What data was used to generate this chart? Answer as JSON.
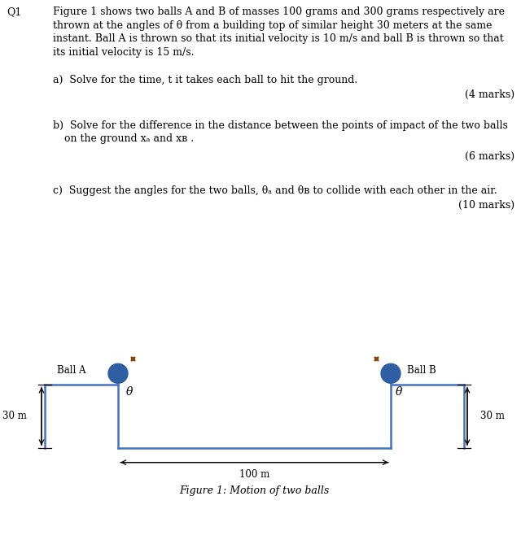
{
  "bg_color": "#ffffff",
  "text_color": "#000000",
  "line_color": "#4472c4",
  "ball_color": "#2e5fa3",
  "arrow_color": "#000000",
  "fig_width": 6.4,
  "fig_height": 6.69,
  "q1_label": "Q1",
  "q1_text": "Figure 1 shows two balls A and B of masses 100 grams and 300 grams respectively are\nthrown at the angles of θ from a building top of similar height 30 meters at the same\ninstant. Ball A is thrown so that its initial velocity is 10 m/s and ball B is thrown so that\nits initial velocity is 15 m/s.",
  "part_a_text": "a)  Solve for the time, t it takes each ball to hit the ground.",
  "part_a_marks": "(4 marks)",
  "part_b_line1": "b)  Solve for the difference in the distance between the points of impact of the two balls",
  "part_b_line2": "     on the ground xₐ and xʙ .",
  "part_b_marks": "(6 marks)",
  "part_c_text": "c)  Suggest the angles for the two balls, θₐ and θʙ to collide with each other in the air.",
  "part_c_marks": "(10 marks)",
  "ball_A_label": "Ball A",
  "ball_B_label": "Ball B",
  "theta_label": "θ",
  "height_label": "30 m",
  "distance_label": "100 m",
  "figure_caption": "Figure 1: Motion of two balls"
}
